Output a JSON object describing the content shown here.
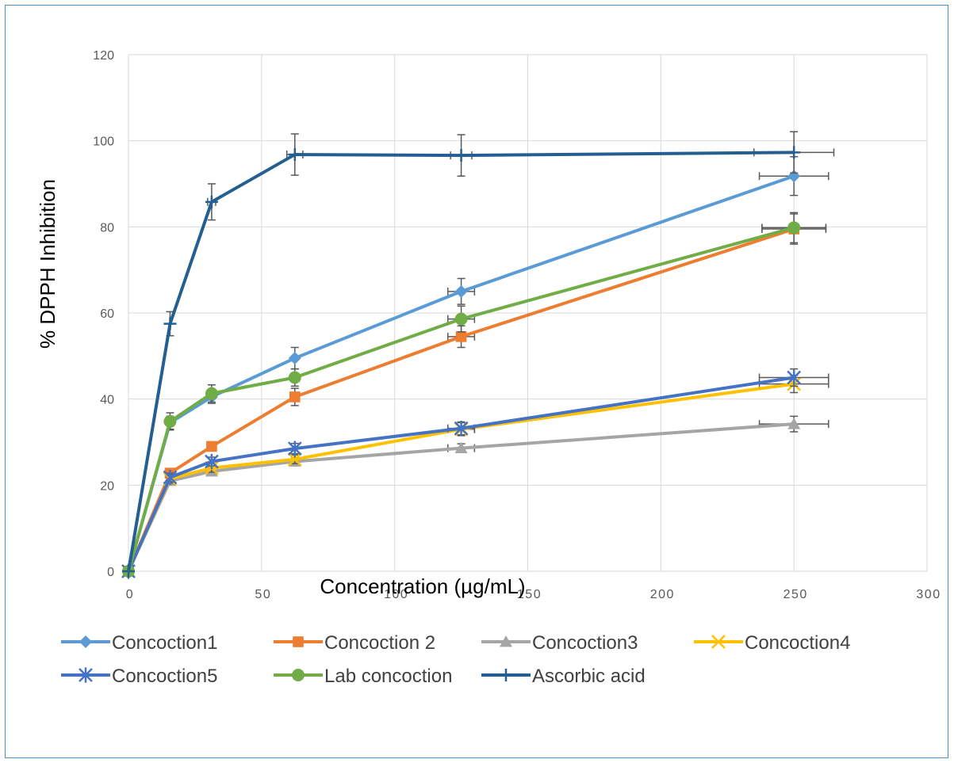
{
  "chart_data": {
    "type": "line",
    "xlabel": "Concentration (µg/mL)",
    "ylabel": "% DPPH  Inhibition",
    "xlim": [
      0,
      300
    ],
    "ylim": [
      0,
      120
    ],
    "x_ticks": [
      "0",
      "50",
      "100",
      "150",
      "200",
      "250",
      "300"
    ],
    "y_ticks": [
      "0",
      "20",
      "40",
      "60",
      "80",
      "100",
      "120"
    ],
    "grid": true,
    "legend_position": "bottom",
    "x": [
      0,
      15.625,
      31.25,
      62.5,
      125,
      250
    ],
    "series": [
      {
        "name": "Concoction1",
        "color": "#5b9bd5",
        "marker": "diamond",
        "values": [
          0,
          34.5,
          40.5,
          49.5,
          65.0,
          91.8
        ],
        "yerr": [
          0,
          1.5,
          1.5,
          2.5,
          3.0,
          4.5
        ],
        "xerr": [
          0,
          0,
          0,
          0,
          5,
          13
        ]
      },
      {
        "name": "Concoction 2",
        "color": "#ed7d31",
        "marker": "square",
        "values": [
          0,
          22.8,
          29.0,
          40.5,
          54.5,
          79.5
        ],
        "yerr": [
          0,
          1.0,
          1.0,
          2.0,
          2.5,
          3.5
        ],
        "xerr": [
          0,
          0,
          0,
          0,
          5,
          12
        ]
      },
      {
        "name": "Concoction3",
        "color": "#a5a5a5",
        "marker": "triangle",
        "values": [
          0,
          21.0,
          23.2,
          25.5,
          28.6,
          34.2
        ],
        "yerr": [
          0,
          1.0,
          1.0,
          1.0,
          1.0,
          1.8
        ],
        "xerr": [
          0,
          0,
          0,
          0,
          5,
          13
        ]
      },
      {
        "name": "Concoction4",
        "color": "#ffc000",
        "marker": "x",
        "values": [
          0,
          21.5,
          24.0,
          26.0,
          33.0,
          43.5
        ],
        "yerr": [
          0,
          1.0,
          1.0,
          1.0,
          1.5,
          2.0
        ],
        "xerr": [
          0,
          0,
          0,
          0,
          5,
          13
        ]
      },
      {
        "name": "Concoction5",
        "color": "#4472c4",
        "marker": "star",
        "values": [
          0,
          21.8,
          25.5,
          28.5,
          33.2,
          45.0
        ],
        "yerr": [
          0,
          1.0,
          1.0,
          1.2,
          1.5,
          2.0
        ],
        "xerr": [
          0,
          0,
          0,
          0,
          5,
          13
        ]
      },
      {
        "name": "Lab concoction",
        "color": "#70ad47",
        "marker": "circle",
        "values": [
          0,
          34.8,
          41.3,
          45.0,
          58.6,
          79.8
        ],
        "yerr": [
          0,
          2.0,
          2.0,
          2.0,
          3.0,
          3.5
        ],
        "xerr": [
          0,
          0,
          0,
          0,
          5,
          12
        ]
      },
      {
        "name": "Ascorbic acid",
        "color": "#255e91",
        "marker": "plus",
        "values": [
          0,
          57.5,
          85.8,
          96.8,
          96.6,
          97.3
        ],
        "yerr": [
          0,
          2.8,
          4.2,
          4.8,
          4.8,
          4.8
        ],
        "xerr": [
          0,
          0,
          1.5,
          3,
          4,
          15
        ]
      }
    ]
  }
}
